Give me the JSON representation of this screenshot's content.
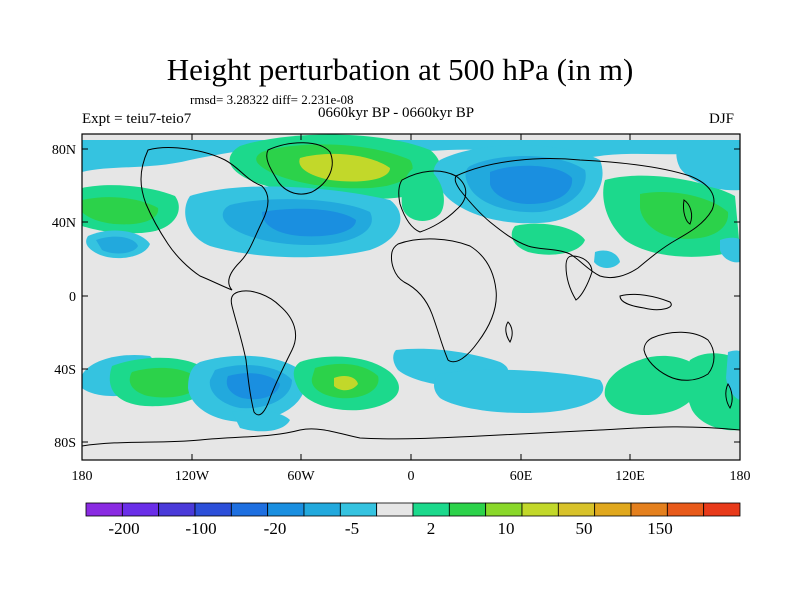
{
  "title": "Height perturbation at 500 hPa (in m)",
  "stats": "rmsd= 3.28322 diff= 2.231e-08",
  "expt": "Expt = teiu7-teio7",
  "period": "0660kyr BP - 0660kyr BP",
  "season": "DJF",
  "lat_labels": [
    "80N",
    "40N",
    "0",
    "40S",
    "80S"
  ],
  "lon_labels": [
    "180",
    "120W",
    "60W",
    "0",
    "60E",
    "120E",
    "180"
  ],
  "colorbar": {
    "labels": [
      "-200",
      "-100",
      "-20",
      "-5",
      "2",
      "10",
      "50",
      "150"
    ],
    "colors": [
      "#8a2be2",
      "#6a2ee8",
      "#4a3ad9",
      "#2c4fd9",
      "#1e6fe0",
      "#1a8fe0",
      "#22a9dd",
      "#35c3e0",
      "#e6e6e6",
      "#1cd98c",
      "#2cd24a",
      "#8ad82a",
      "#c2d82a",
      "#d8c22a",
      "#e0a81e",
      "#e4801e",
      "#e85a1a",
      "#e83a1a"
    ]
  },
  "fill_colors": {
    "ocean_land_background": "#e6e6e6",
    "cyan_light": "#35c3e0",
    "blue_light": "#22a9dd",
    "blue_mid": "#1a8fe0",
    "green_teal": "#1cd98c",
    "green": "#2cd24a",
    "yellow_green": "#c2d82a"
  }
}
